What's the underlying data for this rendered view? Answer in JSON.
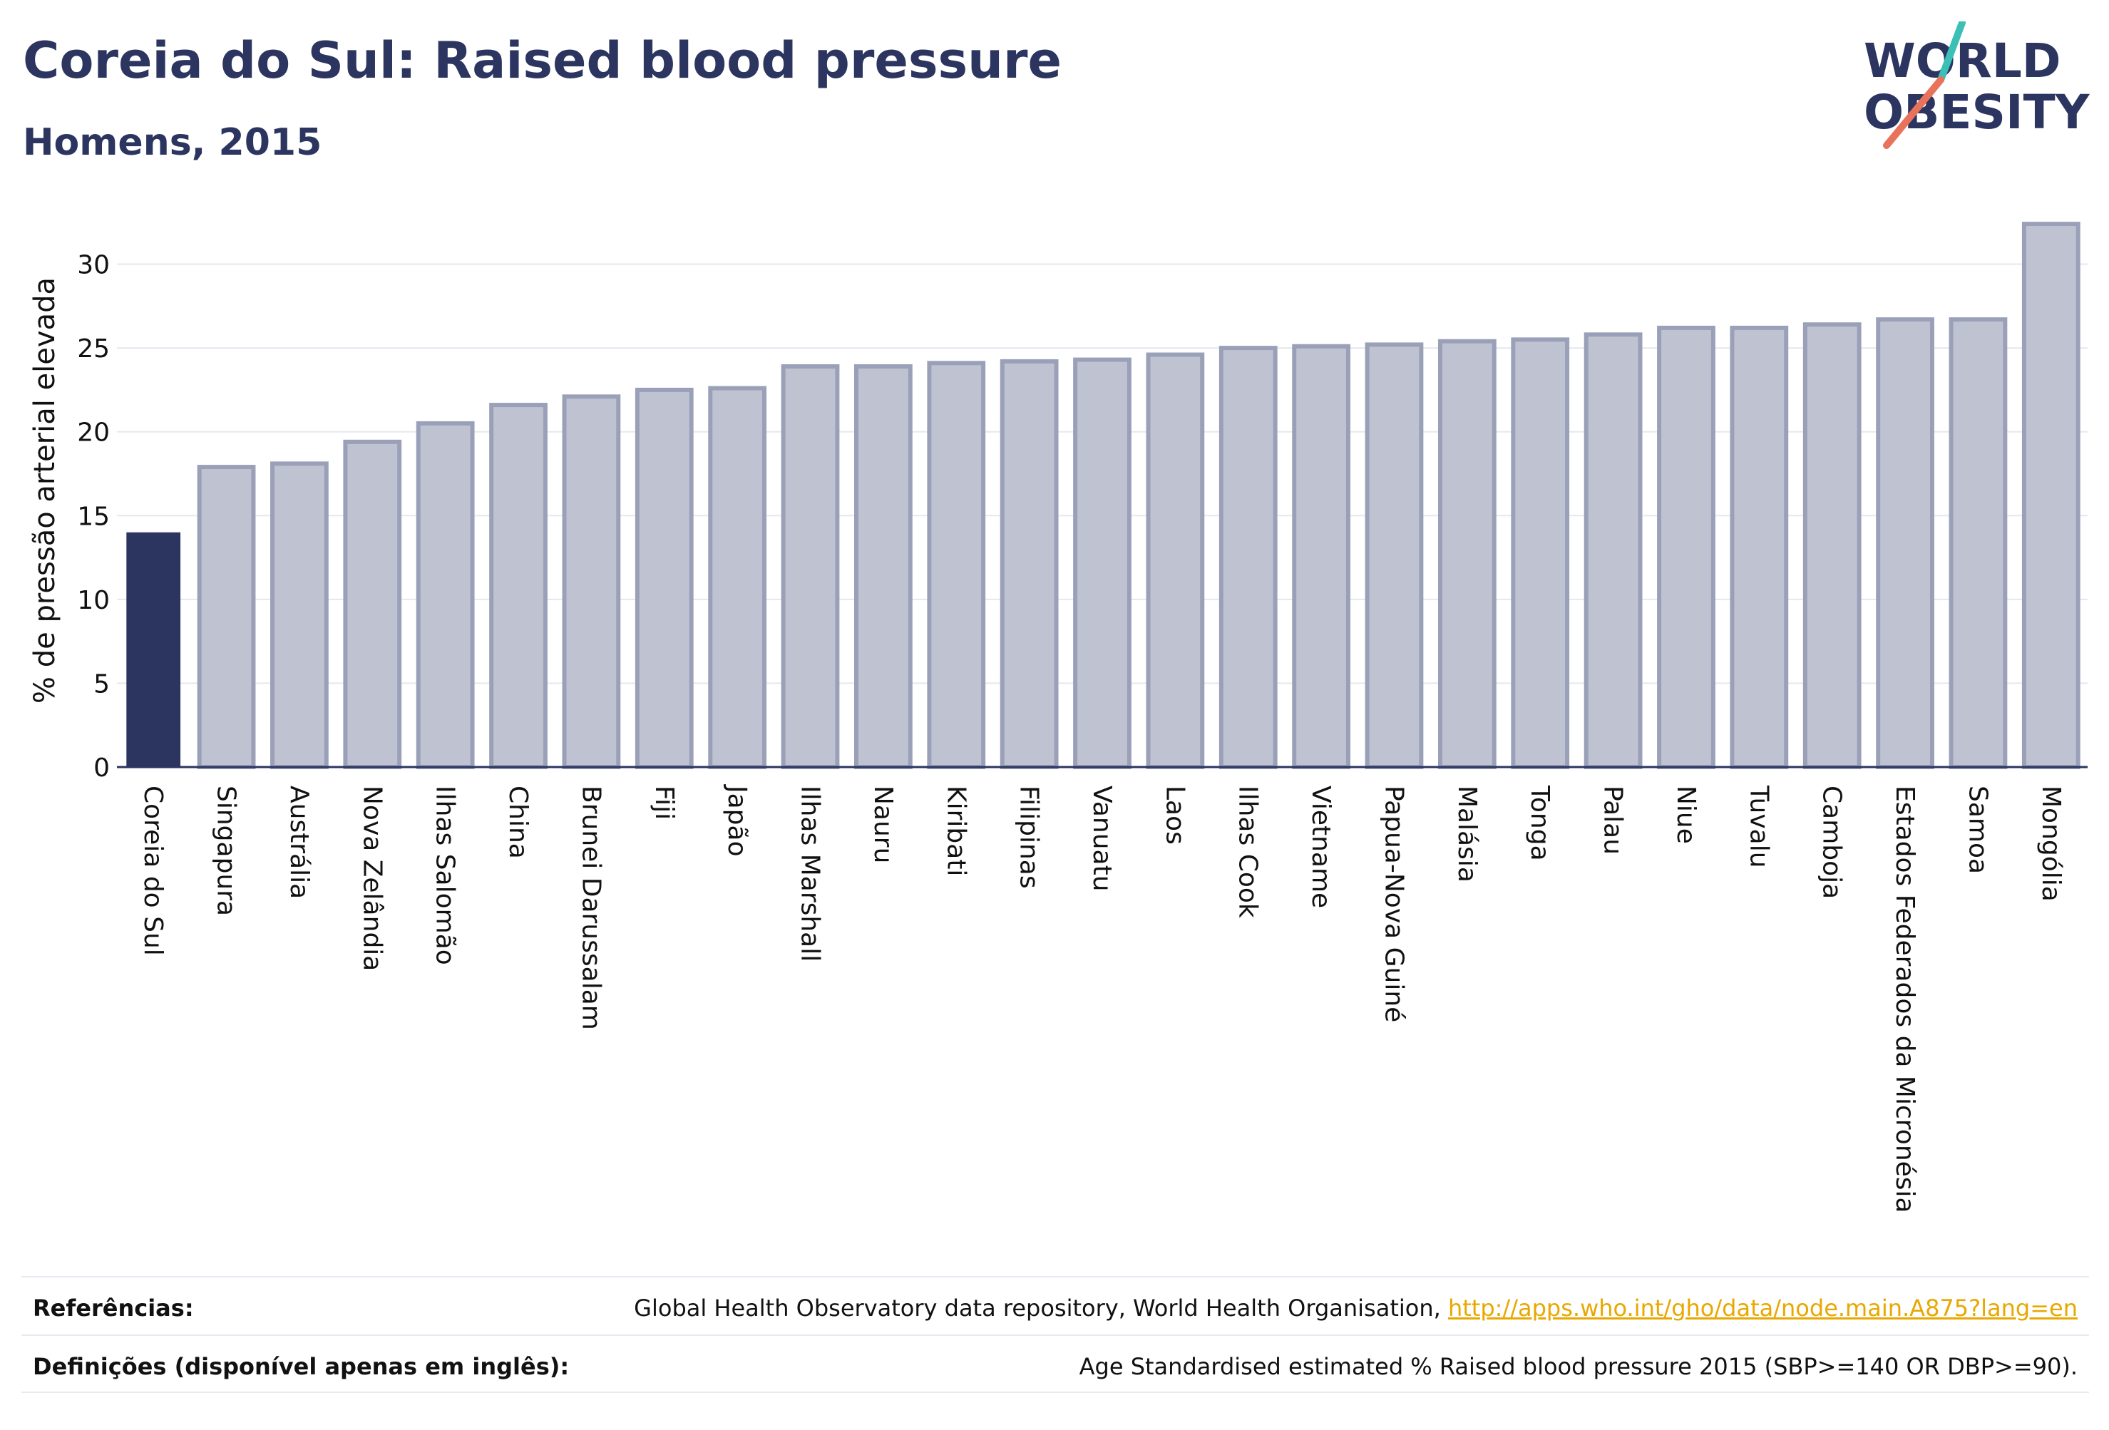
{
  "header": {
    "title": "Coreia do Sul: Raised blood pressure",
    "subtitle": "Homens, 2015"
  },
  "logo": {
    "line1": "WORLD",
    "line2": "OBESITY",
    "accent_teal": "#3bbfb6",
    "accent_coral": "#e8735a",
    "text_color": "#2b3560"
  },
  "chart_data": {
    "type": "bar",
    "ylabel": "% de pressão arterial elevada",
    "ylim": [
      0,
      33
    ],
    "yticks": [
      0,
      5,
      10,
      15,
      20,
      25,
      30
    ],
    "grid": true,
    "highlight_index": 0,
    "colors": {
      "highlight": "#2b3560",
      "bar": "#bfc3d1",
      "bar_border": "#9aa0b8"
    },
    "categories": [
      "Coreia do Sul",
      "Singapura",
      "Austrália",
      "Nova Zelândia",
      "Ilhas Salomão",
      "China",
      "Brunei Darussalam",
      "Fiji",
      "Japão",
      "Ilhas Marshall",
      "Nauru",
      "Kiribati",
      "Filipinas",
      "Vanuatu",
      "Laos",
      "Ilhas Cook",
      "Vietname",
      "Papua-Nova Guiné",
      "Malásia",
      "Tonga",
      "Palau",
      "Niue",
      "Tuvalu",
      "Camboja",
      "Estados Federados da Micronésia",
      "Samoa",
      "Mongólia"
    ],
    "values": [
      14.0,
      17.9,
      18.1,
      19.4,
      20.5,
      21.6,
      22.1,
      22.5,
      22.6,
      23.9,
      23.9,
      24.1,
      24.2,
      24.3,
      24.6,
      25.0,
      25.1,
      25.2,
      25.4,
      25.5,
      25.8,
      26.2,
      26.2,
      26.4,
      26.7,
      26.7,
      32.4
    ]
  },
  "footer": {
    "references_label": "Referências:",
    "references_text": "Global Health Observatory data repository, World Health Organisation,",
    "references_link": "http://apps.who.int/gho/data/node.main.A875?lang=en",
    "definitions_label": "Definições (disponível apenas em inglês):",
    "definitions_text": "Age Standardised estimated % Raised blood pressure 2015 (SBP>=140 OR DBP>=90)."
  }
}
